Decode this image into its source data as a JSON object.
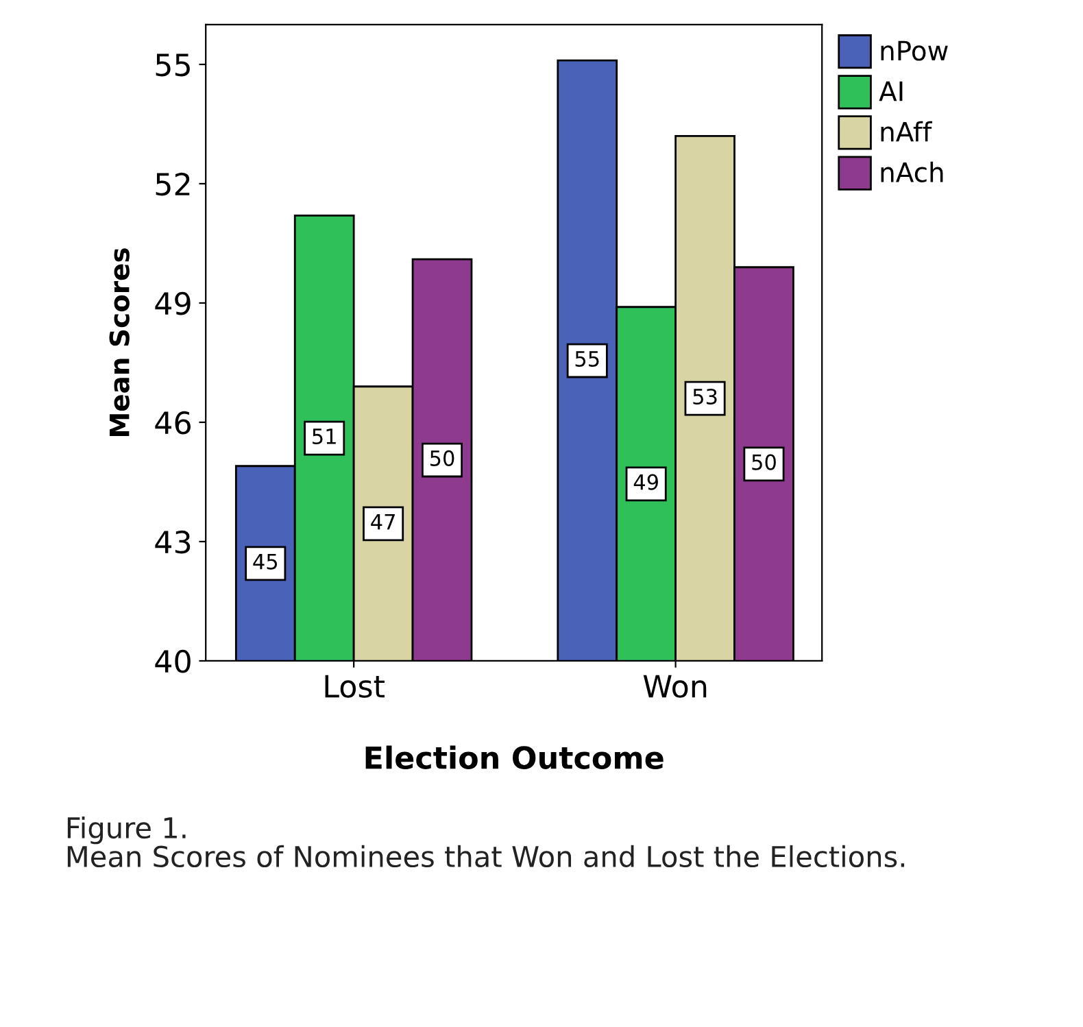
{
  "chart_data": {
    "type": "bar",
    "categories": [
      "Lost",
      "Won"
    ],
    "series": [
      {
        "name": "nPow",
        "color": "#4a62b8",
        "values": [
          44.9,
          55.1
        ],
        "value_labels": [
          "45",
          "55"
        ]
      },
      {
        "name": "AI",
        "color": "#30c05a",
        "values": [
          51.2,
          48.9
        ],
        "value_labels": [
          "51",
          "49"
        ]
      },
      {
        "name": "nAff",
        "color": "#d9d4a4",
        "values": [
          46.9,
          53.2
        ],
        "value_labels": [
          "47",
          "53"
        ]
      },
      {
        "name": "nAch",
        "color": "#8e3a8e",
        "values": [
          50.1,
          49.9
        ],
        "value_labels": [
          "50",
          "50"
        ]
      }
    ],
    "xlabel": "Election Outcome",
    "ylabel": "Mean Scores",
    "ylim": [
      40,
      56
    ],
    "yticks": [
      40,
      43,
      46,
      49,
      52,
      55
    ],
    "grid": false,
    "legend": "top right",
    "annotations": [
      "Figure 1.",
      "Mean Scores of Nominees that Won and Lost the Elections."
    ]
  }
}
